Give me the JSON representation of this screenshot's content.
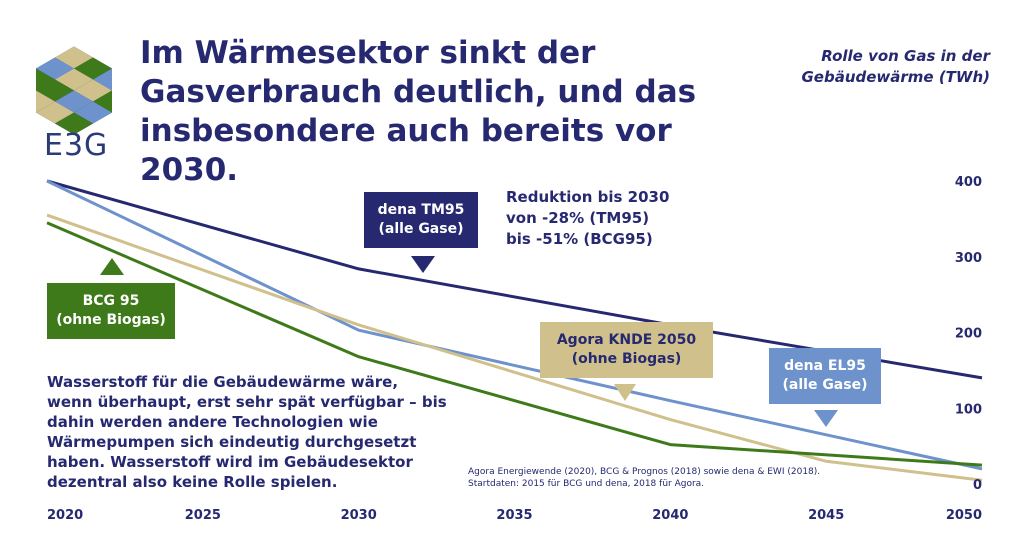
{
  "title": "Im Wärmesektor sinkt der Gasverbrauch deutlich, und das insbesondere auch bereits vor 2030.",
  "unit_label": "Rolle von Gas in der Gebäudewärme (TWh)",
  "logo_text": "E3G",
  "colors": {
    "dena_tm95": "#262870",
    "dena_el95": "#6d92cc",
    "agora": "#cfc08c",
    "bcg95": "#3f7a1a",
    "text": "#262870"
  },
  "callouts": {
    "tm95": "dena TM95\n(alle Gase)",
    "bcg": "BCG 95\n(ohne Biogas)",
    "agora": "Agora KNDE 2050\n(ohne Biogas)",
    "el95": "dena EL95\n(alle Gase)"
  },
  "reduction_text": "Reduktion bis 2030\nvon -28% (TM95)\nbis -51% (BCG95)",
  "note_text": "Wasserstoff für die Gebäudewärme wäre, wenn überhaupt, erst sehr spät verfügbar – bis dahin werden andere Technologien wie Wärmepumpen sich eindeutig durchgesetzt haben. Wasserstoff wird im Gebäudesektor dezentral also keine Rolle spielen.",
  "source_text": "Agora Energiewende (2020), BCG & Prognos (2018) sowie dena & EWI (2018).\nStartdaten: 2015 für BCG und dena, 2018 für Agora.",
  "chart_data": {
    "type": "line",
    "title": "",
    "xlabel": "",
    "ylabel": "",
    "xlim": [
      2020,
      2050
    ],
    "ylim": [
      0,
      400
    ],
    "x_ticks": [
      "2020",
      "2025",
      "2030",
      "2035",
      "2040",
      "2045",
      "2050"
    ],
    "y_ticks": [
      "0",
      "100",
      "200",
      "300",
      "400"
    ],
    "grid": false,
    "series": [
      {
        "name": "dena TM95 (alle Gase)",
        "color": "#262870",
        "points": [
          [
            2020,
            400
          ],
          [
            2030,
            284
          ],
          [
            2040,
            210
          ],
          [
            2050,
            140
          ]
        ]
      },
      {
        "name": "dena EL95 (alle Gase)",
        "color": "#6d92cc",
        "points": [
          [
            2020,
            400
          ],
          [
            2030,
            203
          ],
          [
            2040,
            110
          ],
          [
            2050,
            20
          ]
        ]
      },
      {
        "name": "Agora KNDE 2050 (ohne Biogas)",
        "color": "#cfc08c",
        "points": [
          [
            2020,
            355
          ],
          [
            2030,
            210
          ],
          [
            2040,
            85
          ],
          [
            2045,
            30
          ],
          [
            2050,
            5
          ]
        ]
      },
      {
        "name": "BCG 95 (ohne Biogas)",
        "color": "#3f7a1a",
        "points": [
          [
            2020,
            345
          ],
          [
            2030,
            168
          ],
          [
            2040,
            52
          ],
          [
            2050,
            25
          ]
        ]
      }
    ]
  }
}
